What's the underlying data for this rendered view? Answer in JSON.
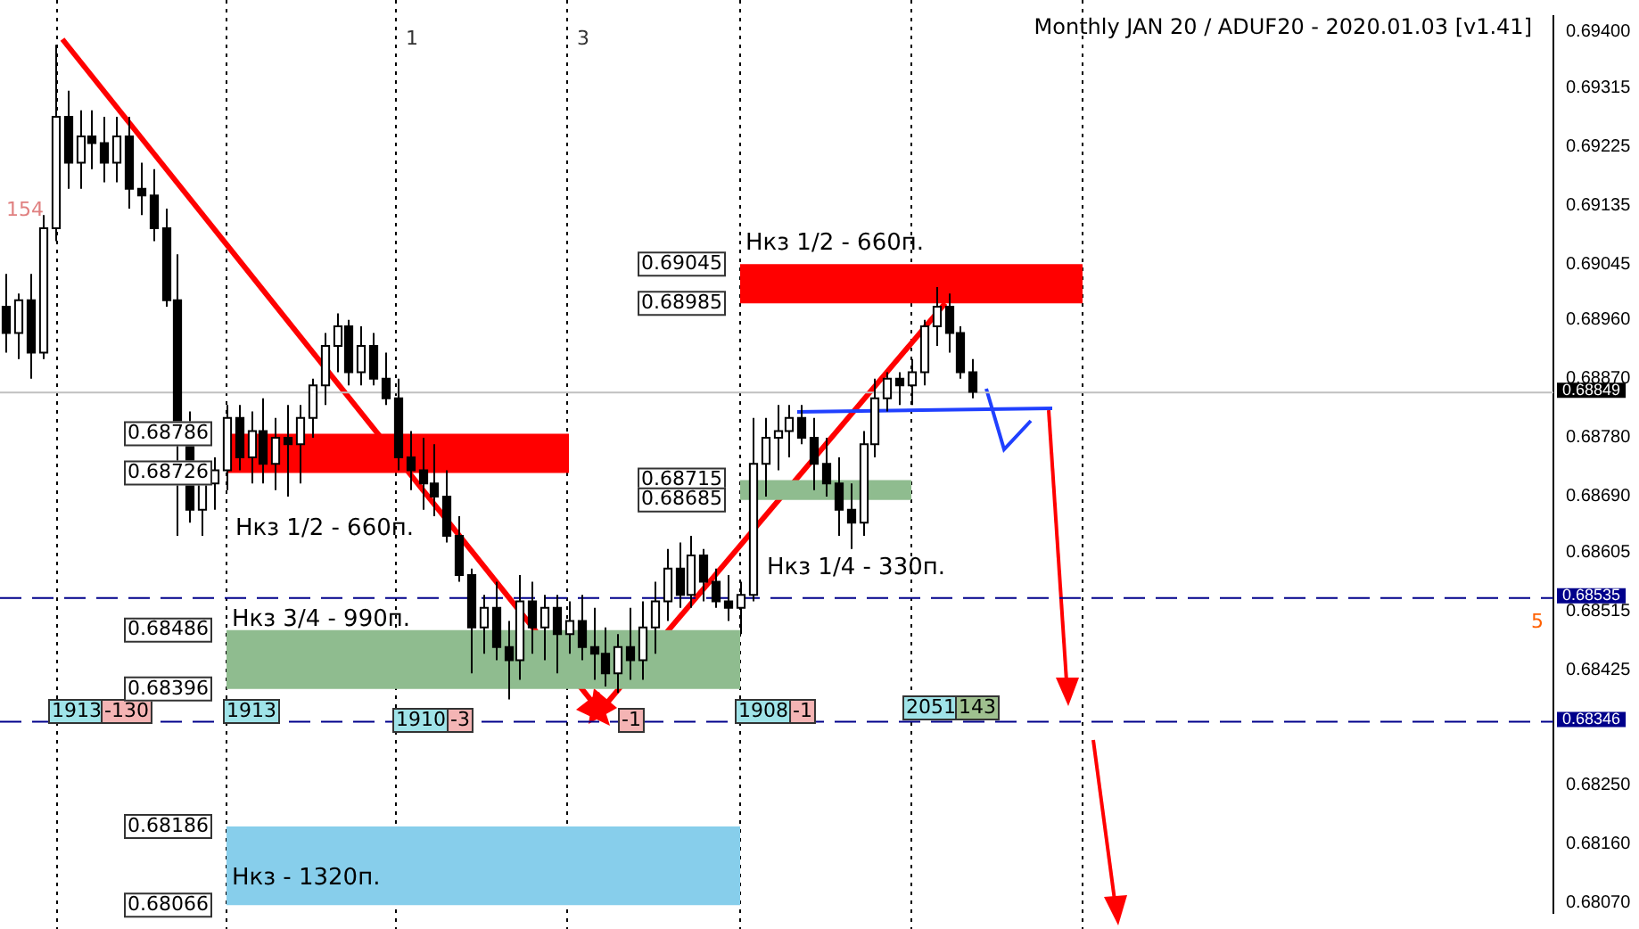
{
  "chart_data": {
    "type": "candlestick",
    "title": "Monthly JAN 20 / ADUF20 - 2020.01.03 [v1.41]",
    "categories": [
      null,
      null,
      null,
      null,
      null,
      null,
      null,
      null,
      null,
      null,
      null,
      null,
      null,
      null,
      null,
      null,
      null,
      null,
      null,
      null,
      null,
      null,
      null,
      null,
      null,
      null,
      null,
      null,
      null,
      null,
      null,
      null,
      null,
      null,
      null,
      null,
      null,
      null,
      null,
      null,
      null,
      null,
      null,
      null,
      null,
      null,
      null,
      null,
      null,
      null,
      null,
      null,
      null,
      null,
      null,
      null,
      null,
      null,
      null,
      null,
      null,
      null,
      null,
      null,
      null,
      null,
      null,
      null,
      null,
      null,
      null,
      null,
      null,
      null,
      null,
      null,
      null,
      null,
      null,
      null,
      null,
      null,
      null,
      null,
      null,
      null,
      null,
      null,
      null,
      null,
      null,
      null,
      null,
      null,
      null,
      null,
      null,
      null,
      null,
      null,
      null,
      null,
      null,
      null,
      null,
      null,
      null,
      null,
      null,
      null,
      null,
      null,
      null,
      null,
      null,
      null,
      null,
      null,
      null,
      null,
      null,
      null,
      null,
      null,
      null,
      null,
      null
    ],
    "ohlc": [
      [
        0.6898,
        0.6903,
        0.6891,
        0.6894
      ],
      [
        0.6894,
        0.69,
        0.689,
        0.6899
      ],
      [
        0.6899,
        0.6903,
        0.6887,
        0.6891
      ],
      [
        0.6891,
        0.6912,
        0.689,
        0.691
      ],
      [
        0.691,
        0.6938,
        0.6908,
        0.6927
      ],
      [
        0.6927,
        0.6931,
        0.6916,
        0.692
      ],
      [
        0.692,
        0.6928,
        0.6916,
        0.6924
      ],
      [
        0.6924,
        0.6928,
        0.6919,
        0.6923
      ],
      [
        0.6923,
        0.6927,
        0.6917,
        0.692
      ],
      [
        0.692,
        0.6927,
        0.6917,
        0.6924
      ],
      [
        0.6924,
        0.6927,
        0.6913,
        0.6916
      ],
      [
        0.6916,
        0.692,
        0.6912,
        0.6915
      ],
      [
        0.6915,
        0.6919,
        0.6908,
        0.691
      ],
      [
        0.691,
        0.6913,
        0.6898,
        0.6899
      ],
      [
        0.6899,
        0.6906,
        0.6863,
        0.6877
      ],
      [
        0.6877,
        0.6882,
        0.6865,
        0.6867
      ],
      [
        0.6867,
        0.6874,
        0.6863,
        0.6871
      ],
      [
        0.6871,
        0.6875,
        0.6867,
        0.6873
      ],
      [
        0.6873,
        0.6883,
        0.687,
        0.6881
      ],
      [
        0.6881,
        0.6883,
        0.6873,
        0.6875
      ],
      [
        0.6875,
        0.6882,
        0.6871,
        0.6879
      ],
      [
        0.6879,
        0.6884,
        0.6871,
        0.6874
      ],
      [
        0.6874,
        0.6881,
        0.687,
        0.6878
      ],
      [
        0.6878,
        0.6883,
        0.6869,
        0.6877
      ],
      [
        0.6877,
        0.6883,
        0.6871,
        0.6881
      ],
      [
        0.6881,
        0.6887,
        0.6878,
        0.6886
      ],
      [
        0.6886,
        0.6894,
        0.6883,
        0.6892
      ],
      [
        0.6892,
        0.6897,
        0.6888,
        0.6895
      ],
      [
        0.6895,
        0.6896,
        0.6886,
        0.6888
      ],
      [
        0.6888,
        0.6895,
        0.6886,
        0.6892
      ],
      [
        0.6892,
        0.6894,
        0.6886,
        0.6887
      ],
      [
        0.6887,
        0.6891,
        0.6883,
        0.6884
      ],
      [
        0.6884,
        0.6887,
        0.6873,
        0.6875
      ],
      [
        0.6875,
        0.6879,
        0.687,
        0.6873
      ],
      [
        0.6873,
        0.6878,
        0.6867,
        0.6871
      ],
      [
        0.6871,
        0.6877,
        0.6866,
        0.6869
      ],
      [
        0.6869,
        0.6873,
        0.6862,
        0.6863
      ],
      [
        0.6863,
        0.6866,
        0.6856,
        0.6857
      ],
      [
        0.6857,
        0.6858,
        0.6842,
        0.6849
      ],
      [
        0.6849,
        0.6854,
        0.6845,
        0.6852
      ],
      [
        0.6852,
        0.6856,
        0.6844,
        0.6846
      ],
      [
        0.6846,
        0.685,
        0.6838,
        0.6844
      ],
      [
        0.6844,
        0.6857,
        0.6841,
        0.6853
      ],
      [
        0.6853,
        0.6856,
        0.6845,
        0.6849
      ],
      [
        0.6849,
        0.6854,
        0.6844,
        0.6852
      ],
      [
        0.6852,
        0.6854,
        0.6842,
        0.6848
      ],
      [
        0.6848,
        0.6853,
        0.6845,
        0.685
      ],
      [
        0.685,
        0.6854,
        0.6844,
        0.6846
      ],
      [
        0.6846,
        0.6852,
        0.6841,
        0.6845
      ],
      [
        0.6845,
        0.6849,
        0.684,
        0.6842
      ],
      [
        0.6842,
        0.6848,
        0.6839,
        0.6846
      ],
      [
        0.6846,
        0.6852,
        0.6841,
        0.6844
      ],
      [
        0.6844,
        0.6853,
        0.6841,
        0.6849
      ],
      [
        0.6849,
        0.6856,
        0.6845,
        0.6853
      ],
      [
        0.6853,
        0.6861,
        0.685,
        0.6858
      ],
      [
        0.6858,
        0.6862,
        0.6852,
        0.6854
      ],
      [
        0.6854,
        0.6863,
        0.6852,
        0.686
      ],
      [
        0.686,
        0.6861,
        0.6853,
        0.6856
      ],
      [
        0.6856,
        0.6858,
        0.6852,
        0.6853
      ],
      [
        0.6853,
        0.6857,
        0.685,
        0.6852
      ],
      [
        0.6852,
        0.6856,
        0.6848,
        0.6854
      ],
      [
        0.6854,
        0.6881,
        0.6853,
        0.6874
      ],
      [
        0.6874,
        0.6881,
        0.6869,
        0.6878
      ],
      [
        0.6878,
        0.6883,
        0.6873,
        0.6879
      ],
      [
        0.6879,
        0.6883,
        0.6875,
        0.6881
      ],
      [
        0.6881,
        0.6883,
        0.6877,
        0.6878
      ],
      [
        0.6878,
        0.6881,
        0.687,
        0.6874
      ],
      [
        0.6874,
        0.6878,
        0.6869,
        0.6871
      ],
      [
        0.6871,
        0.6875,
        0.6863,
        0.6867
      ],
      [
        0.6867,
        0.6871,
        0.6861,
        0.6865
      ],
      [
        0.6865,
        0.6879,
        0.6863,
        0.6877
      ],
      [
        0.6877,
        0.6887,
        0.6875,
        0.6884
      ],
      [
        0.6884,
        0.6888,
        0.6882,
        0.6887
      ],
      [
        0.6887,
        0.6888,
        0.6883,
        0.6886
      ],
      [
        0.6886,
        0.689,
        0.6883,
        0.6888
      ],
      [
        0.6888,
        0.6896,
        0.6886,
        0.6895
      ],
      [
        0.6895,
        0.6901,
        0.6892,
        0.6898
      ],
      [
        0.6898,
        0.69,
        0.6891,
        0.6894
      ],
      [
        0.6894,
        0.6895,
        0.6887,
        0.6888
      ],
      [
        0.6888,
        0.689,
        0.6884,
        0.6885
      ],
      null,
      null,
      null,
      null,
      null,
      null,
      null,
      null,
      null,
      null,
      null,
      null,
      null,
      null,
      null,
      null,
      null,
      null,
      null,
      null,
      null,
      null,
      null,
      null,
      null,
      null,
      null,
      null,
      null,
      null,
      null,
      null,
      null,
      null,
      null,
      null,
      null,
      null,
      null,
      null,
      null,
      null,
      null,
      null,
      null,
      null,
      null
    ],
    "ylim": [
      0.68054,
      0.69424
    ],
    "yticks": [
      {
        "value": 0.694,
        "label": "0.69400"
      },
      {
        "value": 0.69315,
        "label": "0.69315"
      },
      {
        "value": 0.69225,
        "label": "0.69225"
      },
      {
        "value": 0.69135,
        "label": "0.69135"
      },
      {
        "value": 0.69045,
        "label": "0.69045"
      },
      {
        "value": 0.6896,
        "label": "0.68960"
      },
      {
        "value": 0.6887,
        "label": "0.68870"
      },
      {
        "value": 0.6878,
        "label": "0.68780"
      },
      {
        "value": 0.6869,
        "label": "0.68690"
      },
      {
        "value": 0.68605,
        "label": "0.68605"
      },
      {
        "value": 0.68515,
        "label": "0.68515"
      },
      {
        "value": 0.68425,
        "label": "0.68425"
      },
      {
        "value": 0.6825,
        "label": "0.68250"
      },
      {
        "value": 0.6816,
        "label": "0.68160"
      },
      {
        "value": 0.6807,
        "label": "0.68070"
      }
    ],
    "tick_labels": "y",
    "grid": false,
    "legend": false,
    "ref_lines": [
      {
        "axis": "y",
        "value": 0.68849,
        "label": "0.68849",
        "color": "#c0c0c0",
        "line_style": "solid"
      },
      {
        "axis": "y",
        "value": 0.68535,
        "label": "0.68535",
        "color": "#00008b",
        "line_style": "dashed"
      },
      {
        "axis": "y",
        "value": 0.68346,
        "label": "0.68346",
        "color": "#00008b",
        "line_style": "dashed"
      }
    ],
    "bands": [
      {
        "axis": "y",
        "from": 0.68985,
        "to": 0.69045,
        "label": "Нкз 1/2 - 660п.",
        "color": "#ff0000"
      },
      {
        "axis": "y",
        "from": 0.68726,
        "to": 0.68786,
        "label": "Нкз 1/2 - 660п.",
        "color": "#ff0000"
      },
      {
        "axis": "y",
        "from": 0.68685,
        "to": 0.68715,
        "label": "Нкз 1/4 - 330п.",
        "color": "#8fbc8f"
      },
      {
        "axis": "y",
        "from": 0.68396,
        "to": 0.68486,
        "label": "Нкз 3/4 - 990п.",
        "color": "#8fbc8f"
      },
      {
        "axis": "y",
        "from": 0.68066,
        "to": 0.68186,
        "label": "Нкз - 1320п.",
        "color": "#87ceeb"
      }
    ],
    "annotations": [
      "154",
      "1",
      "3",
      "5",
      "1913",
      "-130",
      "1913",
      "1910",
      "-3",
      "-1",
      "1908",
      "-1",
      "2051",
      "143",
      "0.69045",
      "0.68985",
      "0.68786",
      "0.68726",
      "0.68715",
      "0.68685",
      "0.68486",
      "0.68396",
      "0.68186",
      "0.68066"
    ]
  }
}
